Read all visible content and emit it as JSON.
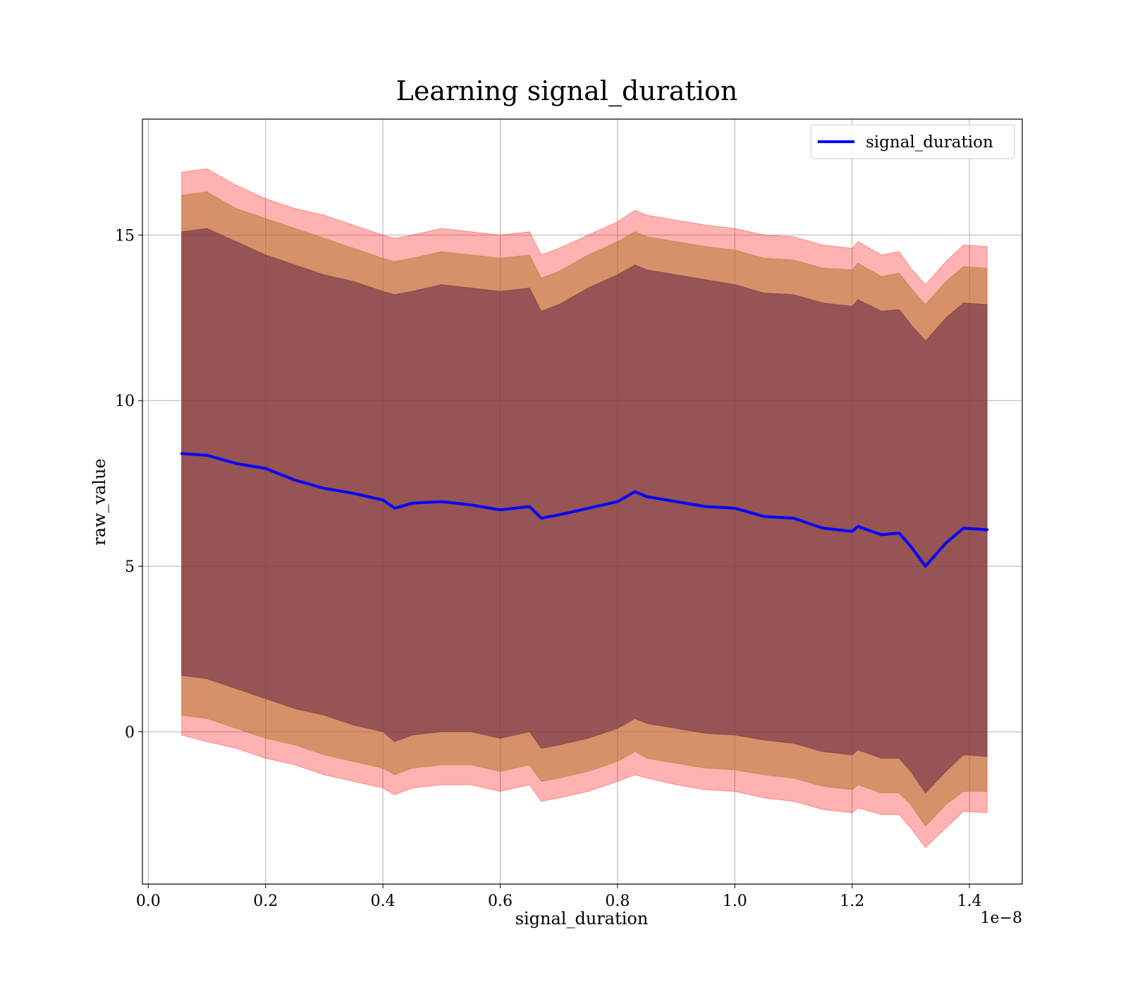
{
  "chart_data": {
    "type": "line",
    "title": "Learning signal_duration",
    "xlabel": "signal_duration",
    "ylabel": "raw_value",
    "x_offset_label": "1e−8",
    "xlim": [
      -0.01,
      1.49
    ],
    "ylim": [
      -4.6,
      18.5
    ],
    "x_ticks": [
      0.0,
      0.2,
      0.4,
      0.6,
      0.8,
      1.0,
      1.2,
      1.4
    ],
    "x_tick_labels": [
      "0.0",
      "0.2",
      "0.4",
      "0.6",
      "0.8",
      "1.0",
      "1.2",
      "1.4"
    ],
    "y_ticks": [
      0,
      5,
      10,
      15
    ],
    "y_tick_labels": [
      "0",
      "5",
      "10",
      "15"
    ],
    "grid": true,
    "legend": {
      "position": "top-right",
      "entries": [
        "signal_duration"
      ]
    },
    "colors": {
      "line": "#0000ff",
      "band_outer": "#ff0000",
      "band_middle": "#b5762d",
      "band_inner": "#6a2c46"
    },
    "series": [
      {
        "name": "signal_duration",
        "x": [
          0.057,
          0.1,
          0.15,
          0.2,
          0.25,
          0.3,
          0.35,
          0.4,
          0.42,
          0.45,
          0.5,
          0.55,
          0.6,
          0.65,
          0.67,
          0.7,
          0.75,
          0.8,
          0.83,
          0.85,
          0.9,
          0.95,
          1.0,
          1.05,
          1.1,
          1.15,
          1.2,
          1.21,
          1.25,
          1.28,
          1.3,
          1.325,
          1.36,
          1.39,
          1.43
        ],
        "y": [
          8.4,
          8.35,
          8.1,
          7.95,
          7.6,
          7.35,
          7.2,
          7.0,
          6.75,
          6.9,
          6.95,
          6.85,
          6.7,
          6.8,
          6.45,
          6.55,
          6.75,
          6.95,
          7.25,
          7.1,
          6.95,
          6.8,
          6.75,
          6.5,
          6.45,
          6.15,
          6.05,
          6.2,
          5.95,
          6.0,
          5.6,
          5.0,
          5.7,
          6.15,
          6.1
        ]
      }
    ],
    "bands": [
      {
        "level": "outer",
        "upper": [
          16.9,
          17.0,
          16.5,
          16.1,
          15.8,
          15.6,
          15.3,
          15.0,
          14.9,
          15.0,
          15.2,
          15.1,
          15.0,
          15.1,
          14.4,
          14.6,
          15.0,
          15.4,
          15.75,
          15.6,
          15.45,
          15.3,
          15.2,
          15.0,
          14.95,
          14.7,
          14.6,
          14.8,
          14.4,
          14.5,
          14.0,
          13.5,
          14.2,
          14.7,
          14.65
        ],
        "lower": [
          -0.1,
          -0.3,
          -0.5,
          -0.8,
          -1.0,
          -1.3,
          -1.5,
          -1.7,
          -1.9,
          -1.7,
          -1.6,
          -1.6,
          -1.8,
          -1.6,
          -2.1,
          -2.0,
          -1.8,
          -1.5,
          -1.3,
          -1.4,
          -1.6,
          -1.75,
          -1.8,
          -2.0,
          -2.1,
          -2.35,
          -2.45,
          -2.3,
          -2.5,
          -2.5,
          -2.9,
          -3.5,
          -2.9,
          -2.4,
          -2.45
        ]
      },
      {
        "level": "middle",
        "upper": [
          16.2,
          16.3,
          15.8,
          15.5,
          15.2,
          14.9,
          14.6,
          14.3,
          14.2,
          14.3,
          14.5,
          14.4,
          14.3,
          14.4,
          13.7,
          13.9,
          14.4,
          14.8,
          15.1,
          14.95,
          14.8,
          14.65,
          14.55,
          14.3,
          14.25,
          14.0,
          13.95,
          14.15,
          13.75,
          13.85,
          13.4,
          12.9,
          13.6,
          14.05,
          14.0
        ]
      },
      {
        "level": "middle-lower",
        "lower": [
          0.5,
          0.4,
          0.1,
          -0.2,
          -0.4,
          -0.7,
          -0.9,
          -1.1,
          -1.3,
          -1.1,
          -1.0,
          -1.0,
          -1.2,
          -1.0,
          -1.5,
          -1.4,
          -1.2,
          -0.9,
          -0.6,
          -0.8,
          -0.95,
          -1.1,
          -1.15,
          -1.3,
          -1.4,
          -1.65,
          -1.75,
          -1.6,
          -1.85,
          -1.85,
          -2.2,
          -2.85,
          -2.2,
          -1.8,
          -1.8
        ]
      },
      {
        "level": "inner",
        "upper": [
          15.1,
          15.2,
          14.8,
          14.4,
          14.1,
          13.8,
          13.6,
          13.3,
          13.2,
          13.3,
          13.5,
          13.4,
          13.3,
          13.4,
          12.7,
          12.9,
          13.4,
          13.8,
          14.1,
          13.95,
          13.8,
          13.65,
          13.5,
          13.25,
          13.2,
          12.95,
          12.85,
          13.05,
          12.7,
          12.75,
          12.3,
          11.8,
          12.5,
          12.95,
          12.9
        ]
      },
      {
        "level": "inner-lower",
        "lower": [
          1.7,
          1.6,
          1.3,
          1.0,
          0.7,
          0.5,
          0.2,
          0.0,
          -0.3,
          -0.1,
          0.0,
          0.0,
          -0.2,
          0.0,
          -0.5,
          -0.4,
          -0.2,
          0.1,
          0.4,
          0.25,
          0.1,
          -0.05,
          -0.1,
          -0.25,
          -0.35,
          -0.6,
          -0.7,
          -0.55,
          -0.8,
          -0.8,
          -1.2,
          -1.85,
          -1.2,
          -0.7,
          -0.75
        ]
      }
    ]
  }
}
